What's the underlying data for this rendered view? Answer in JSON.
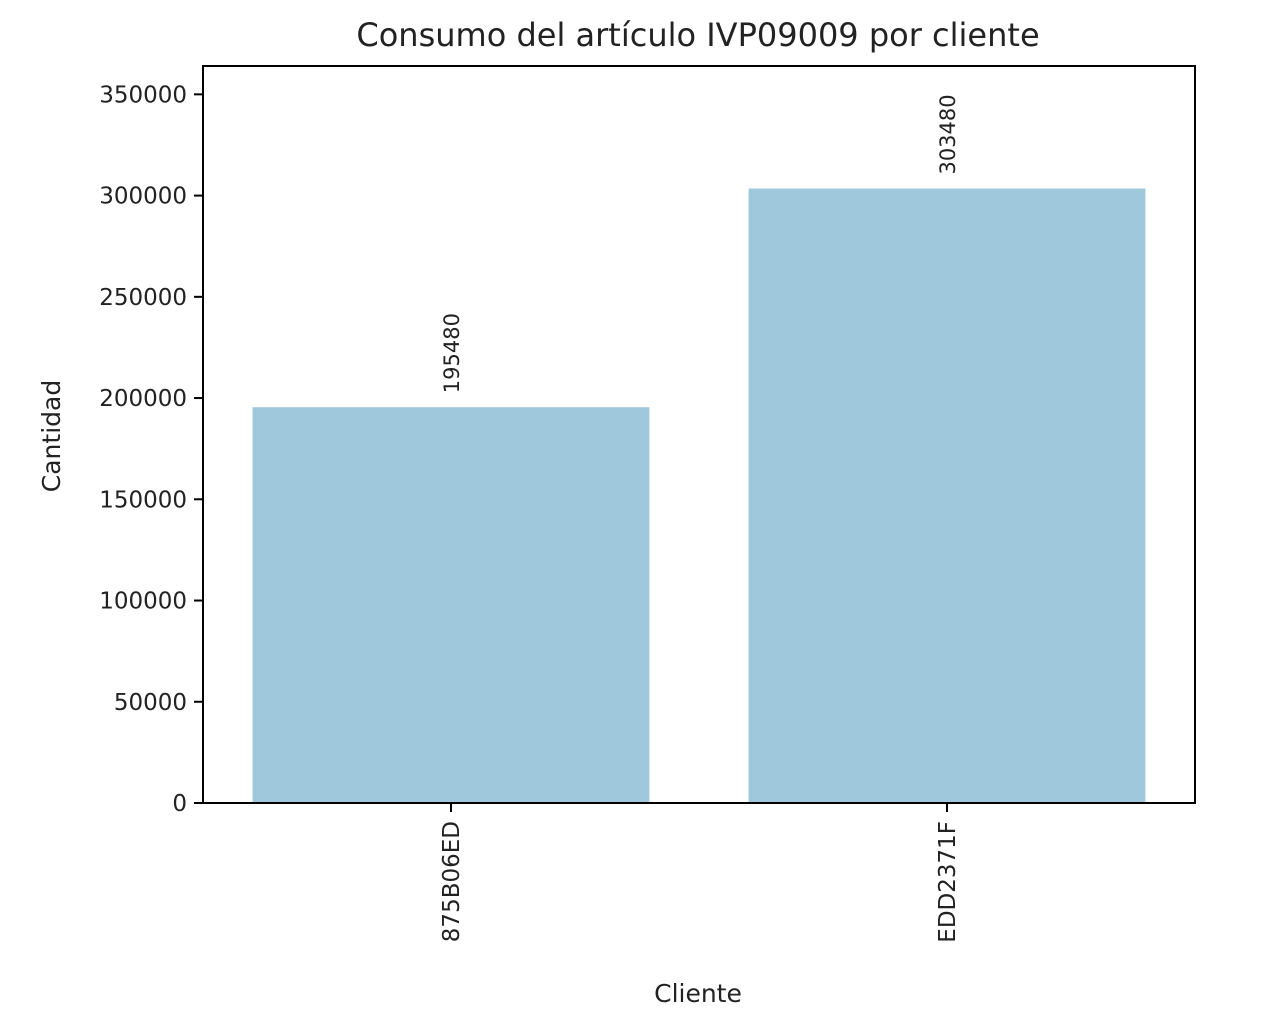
{
  "chart_data": {
    "type": "bar",
    "title": "Consumo del artículo IVP09009 por cliente",
    "xlabel": "Cliente",
    "ylabel": "Cantidad",
    "categories": [
      "875B06ED",
      "EDD2371F"
    ],
    "values": [
      195480,
      303480
    ],
    "data_labels": [
      "195480",
      "303480"
    ],
    "yticks": [
      0,
      50000,
      100000,
      150000,
      200000,
      250000,
      300000,
      350000
    ],
    "ytick_labels": [
      "0",
      "50000",
      "100000",
      "150000",
      "200000",
      "250000",
      "300000",
      "350000"
    ],
    "ylim": [
      0,
      364000
    ],
    "bar_color": "#a0c8dc",
    "grid": false,
    "legend": "none"
  }
}
